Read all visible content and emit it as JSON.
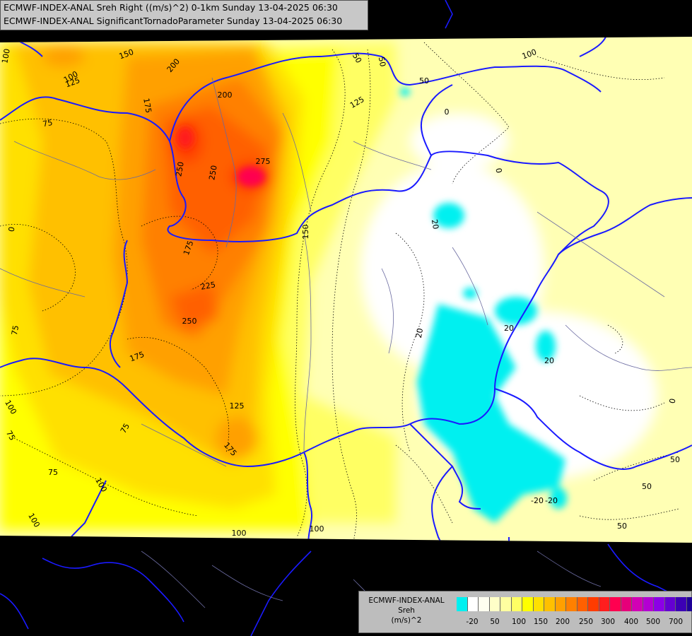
{
  "title": {
    "line1": "ECMWF-INDEX-ANAL Sreh Right ((m/s)^2) 0-1km Sunday 13-04-2025 06:30",
    "line2": "ECMWF-INDEX-ANAL SignificantTornadoParameter Sunday 13-04-2025 06:30"
  },
  "legend": {
    "line1": "ECMWF-INDEX-ANAL",
    "line2": "Sreh",
    "line3": "(m/s)^2",
    "colors": [
      "#00f0f0",
      "#ffffff",
      "#fffff0",
      "#ffffc8",
      "#ffffa0",
      "#ffff64",
      "#ffff00",
      "#ffe000",
      "#ffc000",
      "#ffa000",
      "#ff8000",
      "#ff6000",
      "#ff3c00",
      "#ff1e1e",
      "#ff0050",
      "#e6007a",
      "#d200b4",
      "#b400d2",
      "#8c00e6",
      "#6400d2",
      "#3c00b4",
      "#1e0096"
    ],
    "ticks": [
      "-20",
      "50",
      "100",
      "150",
      "200",
      "250",
      "300",
      "400",
      "500",
      "700"
    ]
  },
  "contour_labels": [
    "100",
    "125",
    "150",
    "200",
    "175",
    "75",
    "200",
    "250",
    "250",
    "275",
    "150",
    "0",
    "175",
    "225",
    "250",
    "75",
    "175",
    "125",
    "100",
    "75",
    "175",
    "100",
    "75",
    "100",
    "100",
    "100",
    "100",
    "75",
    "50",
    "125",
    "50",
    "0",
    "0",
    "20",
    "20",
    "20",
    "20",
    "0",
    "50",
    "-20",
    "50",
    "-20",
    "50",
    "50",
    "100"
  ]
}
